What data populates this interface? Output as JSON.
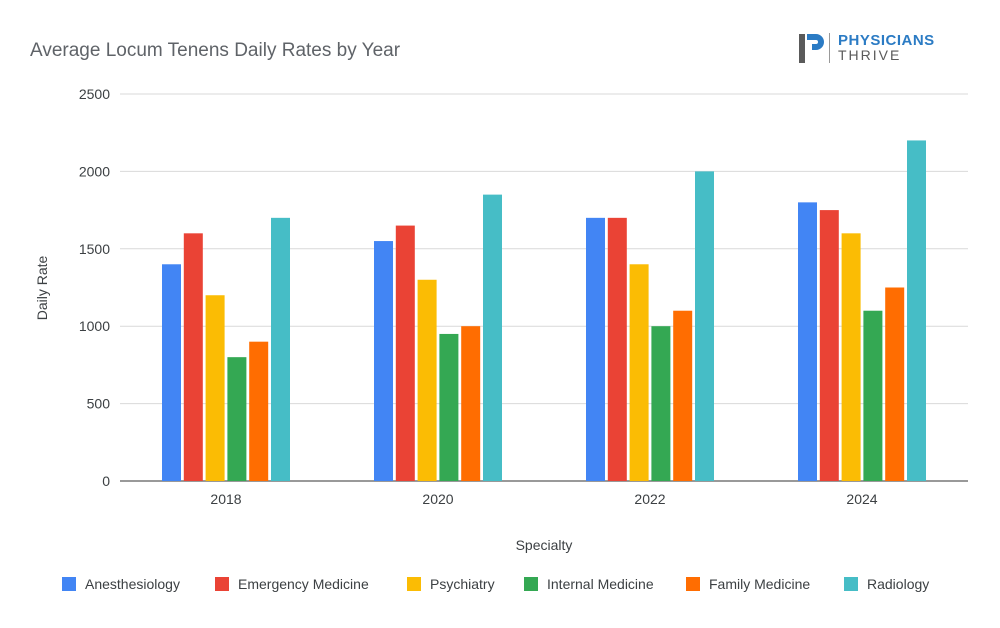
{
  "chart_data": {
    "type": "bar",
    "title": "Average Locum Tenens Daily Rates by Year",
    "xlabel": "Specialty",
    "ylabel": "Daily Rate",
    "categories": [
      "2018",
      "2020",
      "2022",
      "2024"
    ],
    "ylim": [
      0,
      2500
    ],
    "yticks": [
      0,
      500,
      1000,
      1500,
      2000,
      2500
    ],
    "grid": true,
    "legend_position": "bottom",
    "series": [
      {
        "name": "Anesthesiology",
        "color": "#4285f4",
        "values": [
          1400,
          1550,
          1700,
          1800
        ]
      },
      {
        "name": "Emergency Medicine",
        "color": "#ea4335",
        "values": [
          1600,
          1650,
          1700,
          1750
        ]
      },
      {
        "name": "Psychiatry",
        "color": "#fbbc04",
        "values": [
          1200,
          1300,
          1400,
          1600
        ]
      },
      {
        "name": "Internal Medicine",
        "color": "#34a853",
        "values": [
          800,
          950,
          1000,
          1100
        ]
      },
      {
        "name": "Family Medicine",
        "color": "#ff6d01",
        "values": [
          900,
          1000,
          1100,
          1250
        ]
      },
      {
        "name": "Radiology",
        "color": "#46bdc6",
        "values": [
          1700,
          1850,
          2000,
          2200
        ]
      }
    ]
  },
  "logo": {
    "line1": "PHYSICIANS",
    "line2": "THRIVE",
    "icon": "physicians-thrive-p-logo",
    "brand_colors": [
      "#2b7bc4",
      "#5a5a5a"
    ]
  }
}
